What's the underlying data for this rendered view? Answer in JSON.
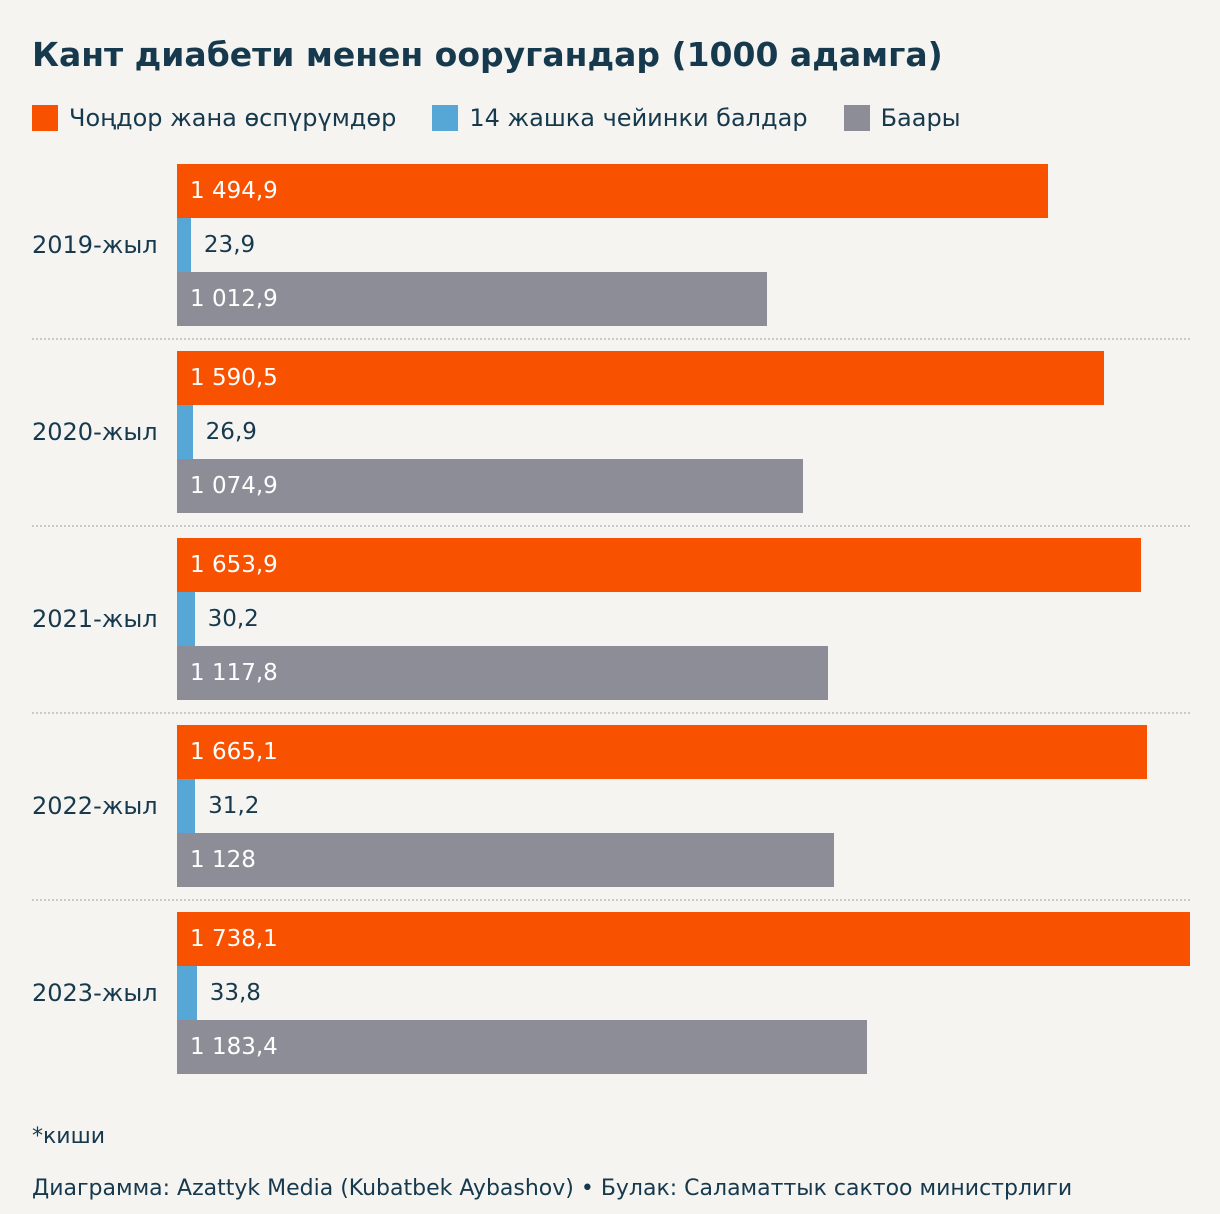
{
  "title": "Кант диабети менен ооругандар (1000 адамга)",
  "legend": [
    {
      "label": "Чоңдор жана өспүрүмдөр",
      "color": "#f85200"
    },
    {
      "label": "14 жашка чейинки балдар",
      "color": "#56a7d5"
    },
    {
      "label": "Баары",
      "color": "#8d8d97"
    }
  ],
  "footnote": "*киши",
  "source": "Диаграмма: Azattyk Media (Kubatbek Aybashov) • Булак: Саламаттык сактоо министрлиги",
  "chart_data": {
    "type": "bar",
    "orientation": "horizontal",
    "title": "Кант диабети менен ооругандар (1000 адамга)",
    "xlabel": "",
    "ylabel": "",
    "xlim": [
      0,
      1738.1
    ],
    "xmax": 1738.1,
    "grid": false,
    "legend_position": "top",
    "categories": [
      "2019-жыл",
      "2020-жыл",
      "2021-жыл",
      "2022-жыл",
      "2023-жыл"
    ],
    "series": [
      {
        "name": "Чоңдор жана өспүрүмдөр",
        "key": "adults",
        "color": "#f85200",
        "value_inside": true,
        "values": [
          1494.9,
          1590.5,
          1653.9,
          1665.1,
          1738.1
        ],
        "labels": [
          "1 494,9",
          "1 590,5",
          "1 653,9",
          "1 665,1",
          "1 738,1"
        ]
      },
      {
        "name": "14 жашка чейинки балдар",
        "key": "children",
        "color": "#56a7d5",
        "value_inside": false,
        "values": [
          23.9,
          26.9,
          30.2,
          31.2,
          33.8
        ],
        "labels": [
          "23,9",
          "26,9",
          "30,2",
          "31,2",
          "33,8"
        ]
      },
      {
        "name": "Баары",
        "key": "total",
        "color": "#8d8d97",
        "value_inside": true,
        "values": [
          1012.9,
          1074.9,
          1117.8,
          1128,
          1183.4
        ],
        "labels": [
          "1 012,9",
          "1 074,9",
          "1 117,8",
          "1 128",
          "1 183,4"
        ]
      }
    ]
  }
}
